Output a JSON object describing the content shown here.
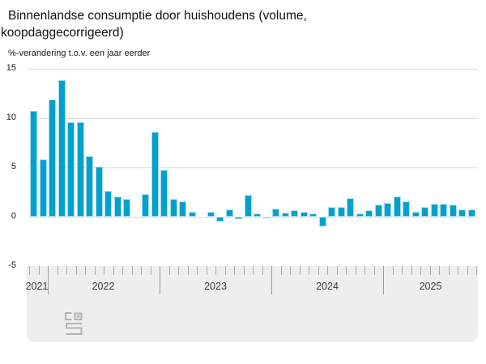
{
  "header": {
    "title_line1": "Binnenlandse consumptie door huishoudens (volume,",
    "title_line2": "koopdaggecorrigeerd)",
    "subtitle": "%-verandering t.o.v. een jaar eerder"
  },
  "chart_data": {
    "type": "bar",
    "title": "Binnenlandse consumptie door huishoudens (volume, koopdaggecorrigeerd)",
    "ylabel": "%-verandering t.o.v. een jaar eerder",
    "unit": "%",
    "ylim": [
      -5,
      15
    ],
    "yticks": [
      15,
      10,
      5,
      0,
      -5
    ],
    "grid": true,
    "legend": "none",
    "x_range": "nov 2021 - okt 2025",
    "year_labels": [
      "2021",
      "2022",
      "2023",
      "2024",
      "2025"
    ],
    "x": [
      "2021-11",
      "2021-12",
      "2022-01",
      "2022-02",
      "2022-03",
      "2022-04",
      "2022-05",
      "2022-06",
      "2022-07",
      "2022-08",
      "2022-09",
      "2022-10",
      "2022-11",
      "2022-12",
      "2023-01",
      "2023-02",
      "2023-03",
      "2023-04",
      "2023-05",
      "2023-06",
      "2023-07",
      "2023-08",
      "2023-09",
      "2023-10",
      "2023-11",
      "2023-12",
      "2024-01",
      "2024-02",
      "2024-03",
      "2024-04",
      "2024-05",
      "2024-06",
      "2024-07",
      "2024-08",
      "2024-09",
      "2024-10",
      "2024-11",
      "2024-12",
      "2025-01",
      "2025-02",
      "2025-03",
      "2025-04",
      "2025-05",
      "2025-06",
      "2025-07",
      "2025-08",
      "2025-09",
      "2025-10"
    ],
    "values": [
      10.7,
      5.8,
      11.9,
      13.8,
      9.6,
      9.6,
      6.1,
      5.1,
      2.6,
      2.0,
      1.8,
      0.0,
      2.3,
      8.6,
      4.7,
      1.8,
      1.5,
      0.5,
      0.0,
      0.5,
      -0.5,
      0.7,
      -0.3,
      2.2,
      0.3,
      -0.1,
      0.8,
      0.4,
      0.6,
      0.5,
      0.3,
      -1.0,
      1.0,
      1.0,
      1.9,
      0.3,
      0.6,
      1.2,
      1.4,
      2.0,
      1.5,
      0.5,
      1.0,
      1.3,
      1.3,
      1.2,
      0.7,
      0.7
    ]
  },
  "colors": {
    "bar": "#00a1cd",
    "bar_border": "#a8dcef",
    "grid": "#dcdcdc",
    "axis_band": "#eeeeee",
    "tick": "#9a9a9a",
    "logo": "#b3b3b3"
  },
  "footer": {
    "logo_name": "cbs-logo"
  }
}
